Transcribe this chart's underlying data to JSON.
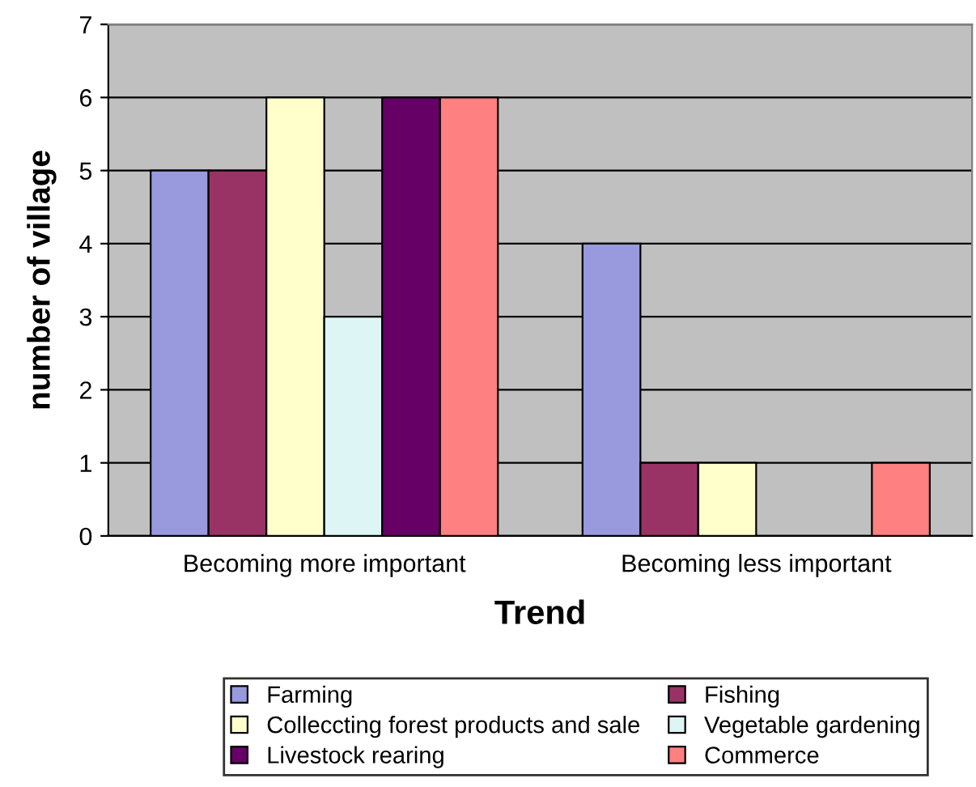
{
  "chart_data": {
    "type": "bar",
    "xlabel": "Trend",
    "ylabel": "number of village",
    "categories": [
      "Becoming more important",
      "Becoming less important"
    ],
    "series": [
      {
        "name": "Farming",
        "color": "#9999dd",
        "values": [
          5,
          4
        ]
      },
      {
        "name": "Fishing",
        "color": "#993366",
        "values": [
          5,
          1
        ]
      },
      {
        "name": "Colleccting forest products and sale",
        "color": "#ffffcc",
        "values": [
          6,
          1
        ]
      },
      {
        "name": "Vegetable gardening",
        "color": "#ddf5f5",
        "values": [
          3,
          0
        ]
      },
      {
        "name": "Livestock rearing",
        "color": "#660066",
        "values": [
          6,
          0
        ]
      },
      {
        "name": "Commerce",
        "color": "#ff8080",
        "values": [
          6,
          1
        ]
      }
    ],
    "ylim": [
      0,
      7
    ],
    "yticks": [
      0,
      1,
      2,
      3,
      4,
      5,
      6,
      7
    ],
    "grid": "y",
    "legend": "bottom"
  }
}
